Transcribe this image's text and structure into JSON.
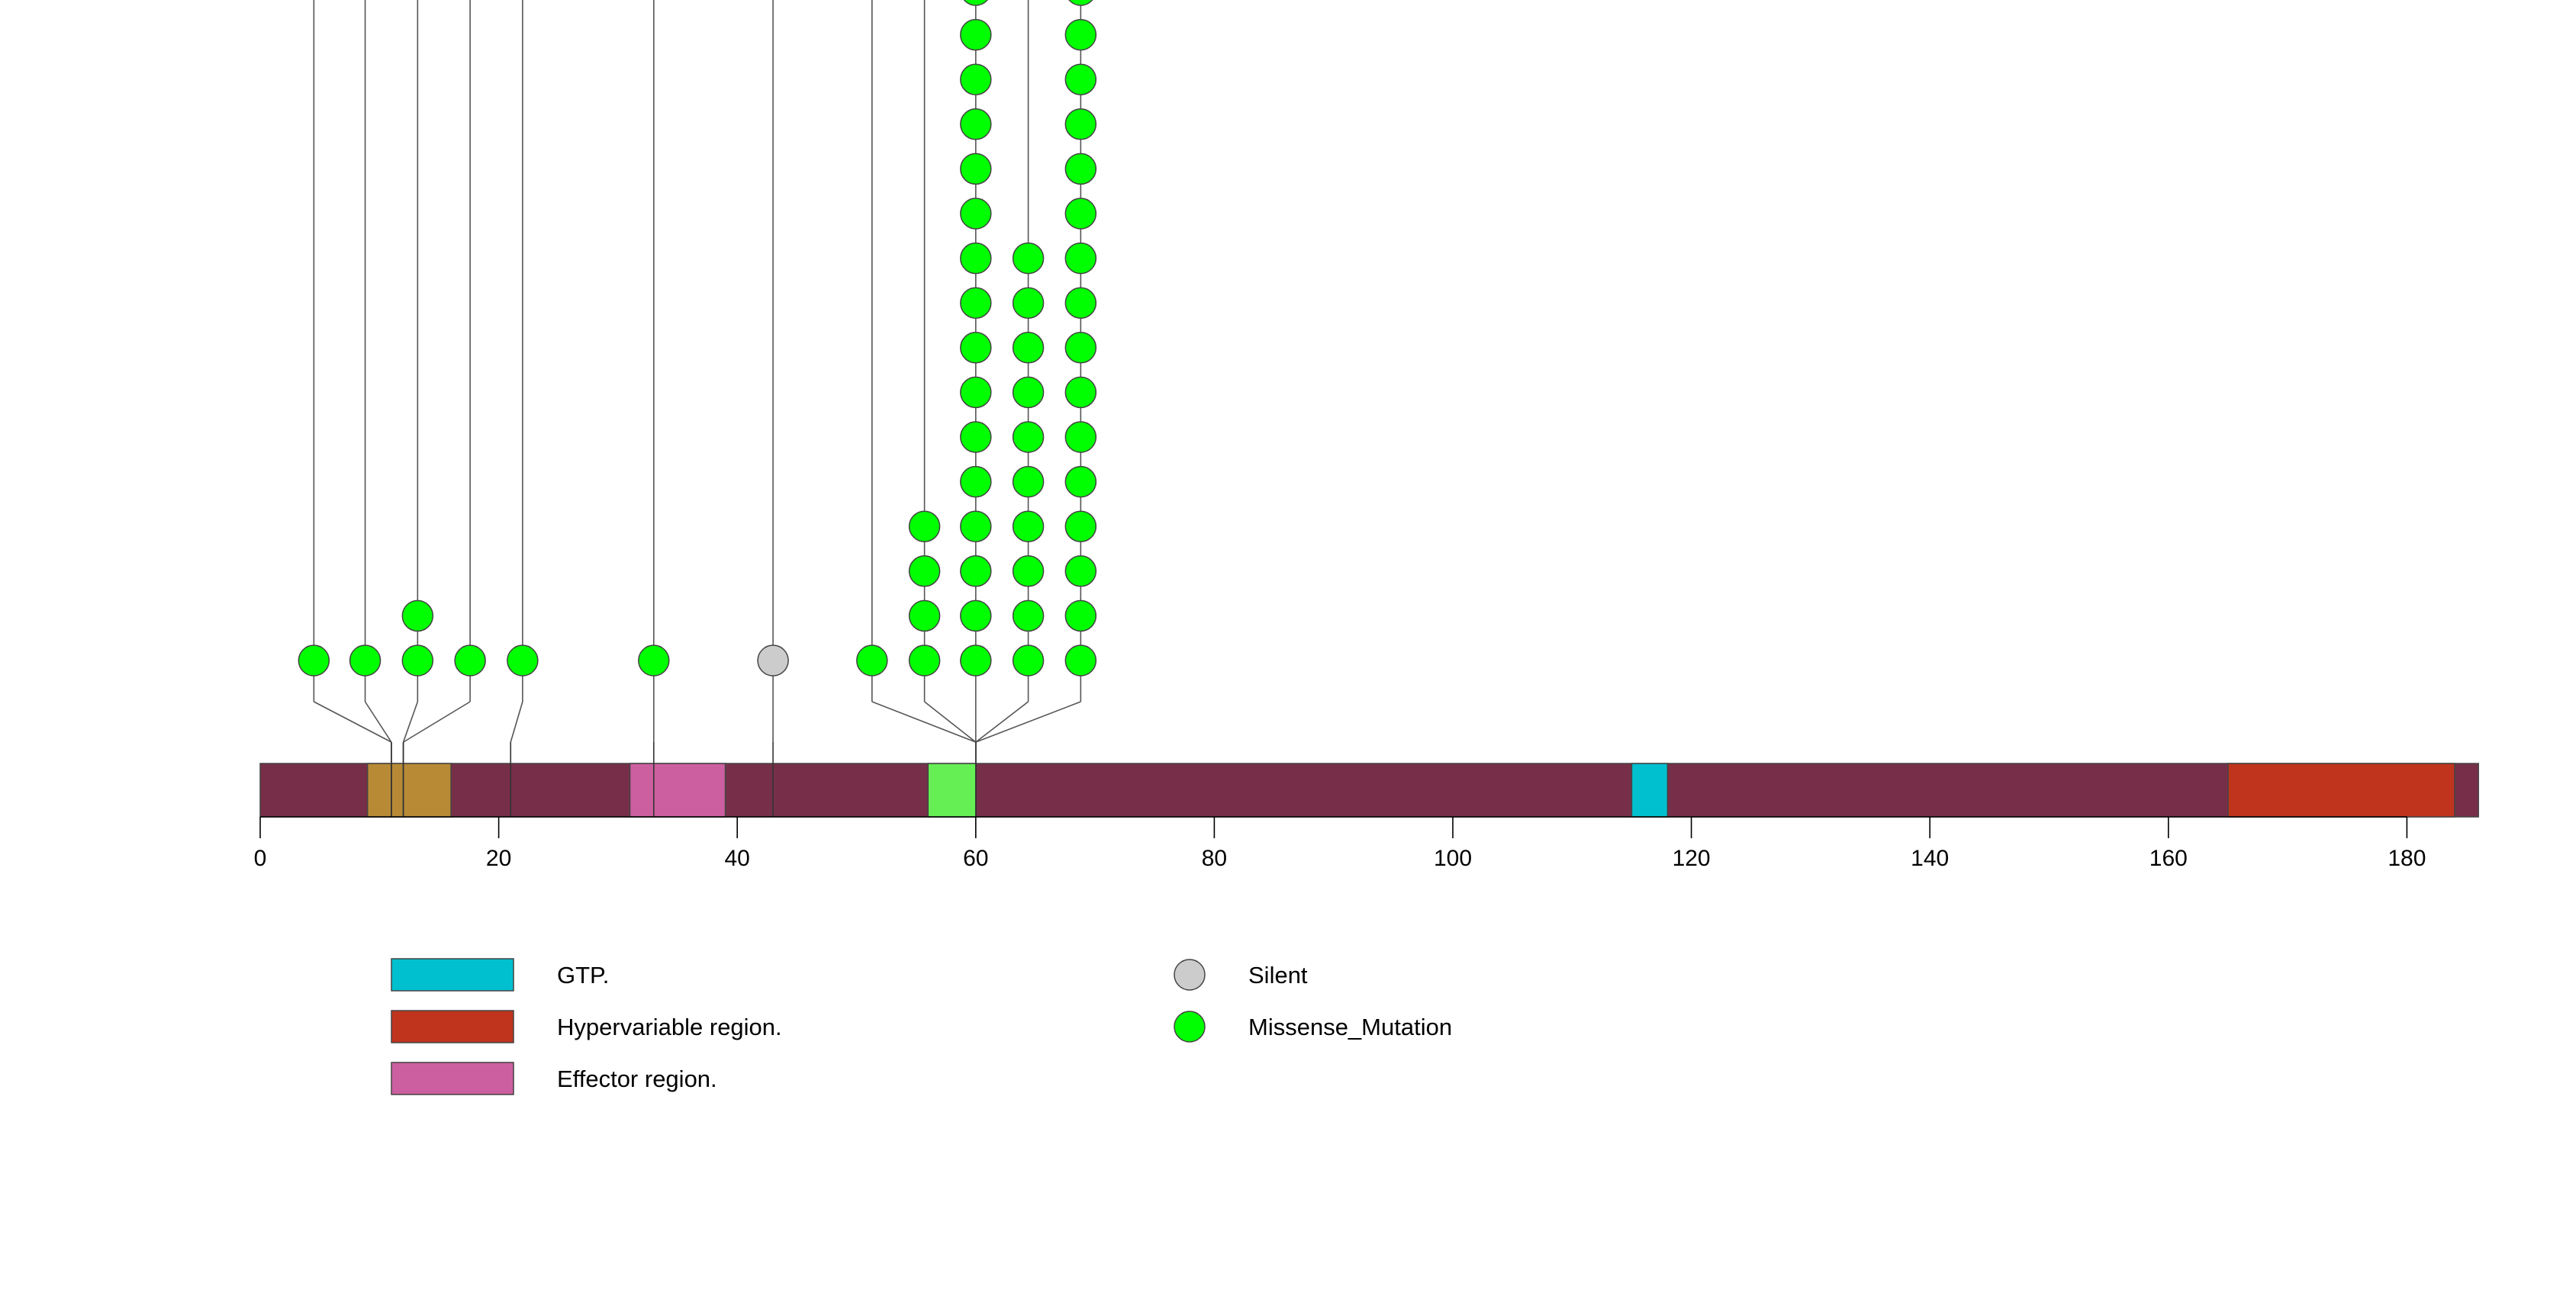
{
  "chart_data": {
    "type": "lollipop",
    "title": "",
    "xlabel": "",
    "ylabel": "",
    "xlim": [
      0,
      186
    ],
    "x_ticks": [
      0,
      20,
      40,
      60,
      80,
      100,
      120,
      140,
      160,
      180
    ],
    "protein_length": 186,
    "colors": {
      "backbone": "#772f49",
      "missense": "#00ff00",
      "silent": "#cccccc",
      "stroke": "#444444"
    },
    "domains": [
      {
        "name": "",
        "start": 9,
        "end": 16,
        "color": "#b88a36"
      },
      {
        "name": "Effector region.",
        "start": 31,
        "end": 39,
        "color": "#cc5f9f"
      },
      {
        "name": "",
        "start": 56,
        "end": 60,
        "color": "#66ee55"
      },
      {
        "name": "GTP.",
        "start": 115,
        "end": 118,
        "color": "#00c0d0"
      },
      {
        "name": "Hypervariable region.",
        "start": 165,
        "end": 184,
        "color": "#c0341e"
      }
    ],
    "mutations": [
      {
        "position": 4.5,
        "anchor": 11,
        "count": 1,
        "type": "Missense_Mutation"
      },
      {
        "position": 8.8,
        "anchor": 11,
        "count": 1,
        "type": "Missense_Mutation"
      },
      {
        "position": 13.2,
        "anchor": 12,
        "count": 2,
        "type": "Missense_Mutation"
      },
      {
        "position": 17.6,
        "anchor": 12,
        "count": 1,
        "type": "Missense_Mutation"
      },
      {
        "position": 22,
        "anchor": 21,
        "count": 1,
        "type": "Missense_Mutation"
      },
      {
        "position": 33,
        "anchor": 33,
        "count": 1,
        "type": "Missense_Mutation"
      },
      {
        "position": 43,
        "anchor": 43,
        "count": 1,
        "type": "Silent"
      },
      {
        "position": 51.3,
        "anchor": 60,
        "count": 1,
        "type": "Missense_Mutation"
      },
      {
        "position": 55.7,
        "anchor": 60,
        "count": 4,
        "type": "Missense_Mutation"
      },
      {
        "position": 60,
        "anchor": 60,
        "count": 16,
        "type": "Missense_Mutation"
      },
      {
        "position": 64.4,
        "anchor": 60,
        "count": 10,
        "type": "Missense_Mutation"
      },
      {
        "position": 68.8,
        "anchor": 60,
        "count": 16,
        "type": "Missense_Mutation"
      }
    ],
    "legend": {
      "domains": [
        {
          "label": "GTP.",
          "color": "#00c0d0"
        },
        {
          "label": "Hypervariable region.",
          "color": "#c0341e"
        },
        {
          "label": "Effector region.",
          "color": "#cc5f9f"
        }
      ],
      "mutation_types": [
        {
          "label": "Silent",
          "color": "#cccccc"
        },
        {
          "label": "Missense_Mutation",
          "color": "#00ff00"
        }
      ]
    }
  }
}
